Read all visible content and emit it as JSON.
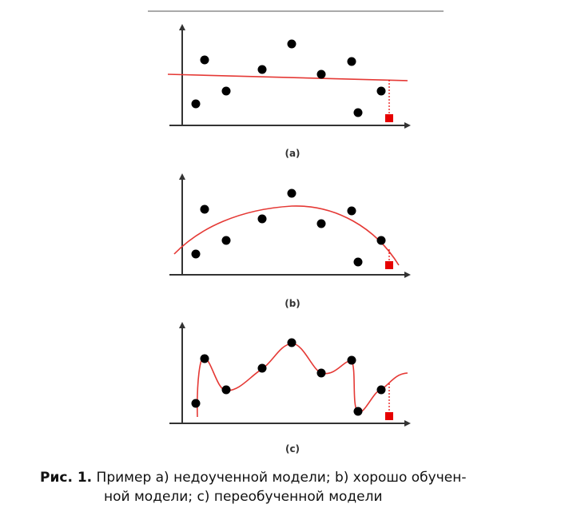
{
  "panels": [
    {
      "id": "a",
      "label": "(a)",
      "fit": "underfit",
      "curve_color": "#e53935",
      "point_color": "#000000",
      "marker_color": "#e60000"
    },
    {
      "id": "b",
      "label": "(b)",
      "fit": "good-fit",
      "curve_color": "#e53935",
      "point_color": "#000000",
      "marker_color": "#e60000"
    },
    {
      "id": "c",
      "label": "(c)",
      "fit": "overfit",
      "curve_color": "#e53935",
      "point_color": "#000000",
      "marker_color": "#e60000"
    }
  ],
  "caption": {
    "label": "Рис. 1.",
    "line1": "Пример a) недоученной модели; b) хорошо обучен-",
    "line2": "ной модели; c) переобученной модели"
  }
}
